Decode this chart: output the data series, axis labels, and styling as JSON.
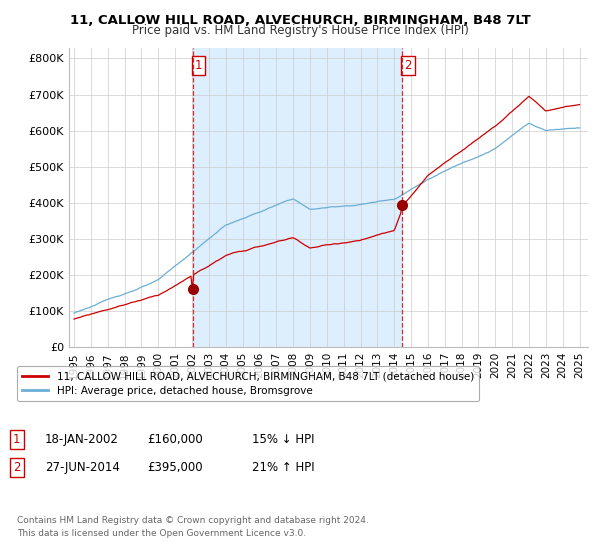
{
  "title": "11, CALLOW HILL ROAD, ALVECHURCH, BIRMINGHAM, B48 7LT",
  "subtitle": "Price paid vs. HM Land Registry's House Price Index (HPI)",
  "ylabel_ticks": [
    "£0",
    "£100K",
    "£200K",
    "£300K",
    "£400K",
    "£500K",
    "£600K",
    "£700K",
    "£800K"
  ],
  "ytick_values": [
    0,
    100000,
    200000,
    300000,
    400000,
    500000,
    600000,
    700000,
    800000
  ],
  "ylim": [
    0,
    830000
  ],
  "xlim_start": 1994.7,
  "xlim_end": 2025.5,
  "xticks": [
    1995,
    1996,
    1997,
    1998,
    1999,
    2000,
    2001,
    2002,
    2003,
    2004,
    2005,
    2006,
    2007,
    2008,
    2009,
    2010,
    2011,
    2012,
    2013,
    2014,
    2015,
    2016,
    2017,
    2018,
    2019,
    2020,
    2021,
    2022,
    2023,
    2024,
    2025
  ],
  "sale1_x": 2002.05,
  "sale1_y": 160000,
  "sale1_label": "1",
  "sale2_x": 2014.49,
  "sale2_y": 395000,
  "sale2_label": "2",
  "red_line_color": "#cc0000",
  "blue_line_color": "#6baed6",
  "shade_color": "#ddeeff",
  "vline_color": "#cc0000",
  "marker_color": "#990000",
  "legend_label1": "11, CALLOW HILL ROAD, ALVECHURCH, BIRMINGHAM, B48 7LT (detached house)",
  "legend_label2": "HPI: Average price, detached house, Bromsgrove",
  "annotation1_date": "18-JAN-2002",
  "annotation1_price": "£160,000",
  "annotation1_hpi": "15% ↓ HPI",
  "annotation2_date": "27-JUN-2014",
  "annotation2_price": "£395,000",
  "annotation2_hpi": "21% ↑ HPI",
  "footer": "Contains HM Land Registry data © Crown copyright and database right 2024.\nThis data is licensed under the Open Government Licence v3.0.",
  "bg_color": "#ffffff",
  "plot_bg_color": "#ffffff",
  "grid_color": "#cccccc"
}
